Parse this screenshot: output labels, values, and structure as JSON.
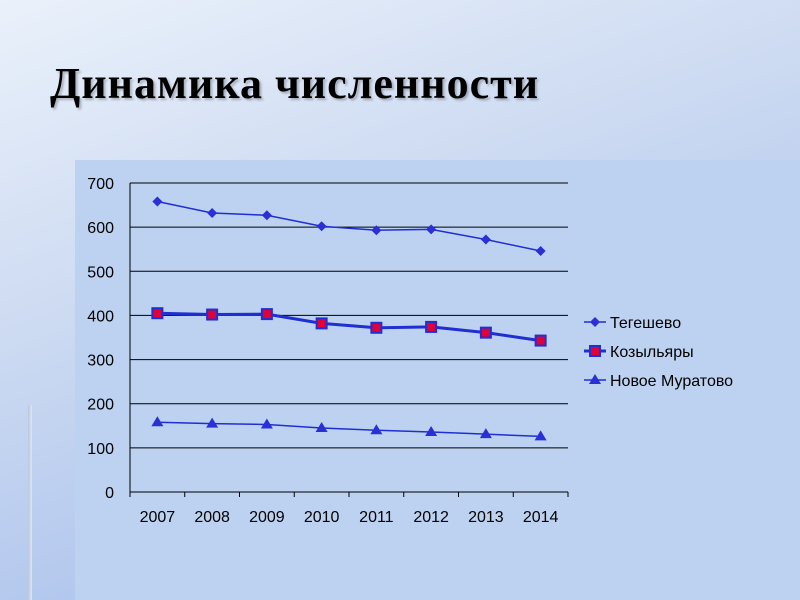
{
  "title": "Динамика численности",
  "colors": {
    "series_line": "#1f2fd0",
    "marker_diamond": "#2a2fd6",
    "marker_square_fill": "#e0003a",
    "marker_square_border": "#1f2fd0",
    "grid": "#000000"
  },
  "chart_data": {
    "type": "line",
    "categories": [
      "2007",
      "2008",
      "2009",
      "2010",
      "2011",
      "2012",
      "2013",
      "2014"
    ],
    "ylim": [
      0,
      700
    ],
    "yticks": [
      "0",
      "100",
      "200",
      "300",
      "400",
      "500",
      "600",
      "700"
    ],
    "grid": true,
    "legend_position": "right",
    "series": [
      {
        "name": "Тегешево",
        "marker": "diamond",
        "values": [
          658,
          632,
          627,
          602,
          593,
          595,
          572,
          546
        ]
      },
      {
        "name": "Козыльяры",
        "marker": "square",
        "values": [
          405,
          402,
          403,
          382,
          372,
          374,
          361,
          343
        ]
      },
      {
        "name": "Новое Муратово",
        "marker": "triangle",
        "values": [
          158,
          155,
          153,
          145,
          140,
          136,
          131,
          126
        ]
      }
    ]
  }
}
